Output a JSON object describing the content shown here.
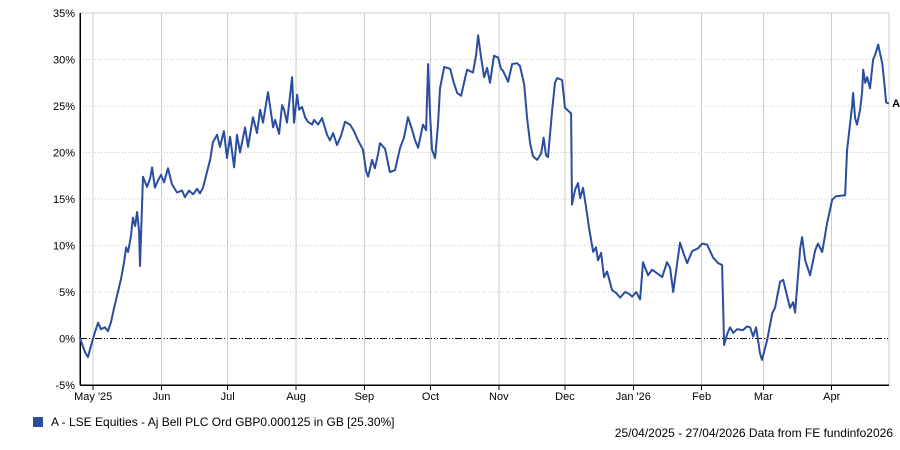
{
  "chart_data": {
    "type": "line",
    "title": "",
    "x_axis": {
      "unit": "date",
      "start_label": "25/04/2025",
      "end_label": "27/04/2026",
      "total_days": 367,
      "ticks": [
        {
          "label": "May '25",
          "day": 6
        },
        {
          "label": "Jun",
          "day": 37
        },
        {
          "label": "Jul",
          "day": 67
        },
        {
          "label": "Aug",
          "day": 98
        },
        {
          "label": "Sep",
          "day": 129
        },
        {
          "label": "Oct",
          "day": 159
        },
        {
          "label": "Nov",
          "day": 190
        },
        {
          "label": "Dec",
          "day": 220
        },
        {
          "label": "Jan '26",
          "day": 251
        },
        {
          "label": "Feb",
          "day": 282
        },
        {
          "label": "Mar",
          "day": 310
        },
        {
          "label": "Apr",
          "day": 341
        }
      ]
    },
    "y_axis": {
      "unit": "%",
      "min": -5,
      "max": 35,
      "tick_step": 5,
      "zero_line": true
    },
    "grid": {
      "vertical_color": "#cccccc",
      "horizontal_color": "#c9c9c9",
      "zero_line_color": "#000000",
      "axis_color": "#000000"
    },
    "series": [
      {
        "name": "A - LSE Equities - Aj Bell PLC Ord GBP0.000125 in GB [25.30%]",
        "short_label": "A",
        "final_value_pct": 25.3,
        "color": "#2a4da0",
        "points": [
          [
            0,
            0
          ],
          [
            2.3,
            -1.5
          ],
          [
            3.6,
            -2
          ],
          [
            5,
            -0.8
          ],
          [
            6.8,
            0.7
          ],
          [
            8.2,
            1.7
          ],
          [
            9.5,
            1
          ],
          [
            11.3,
            1.2
          ],
          [
            12.7,
            0.8
          ],
          [
            14.1,
            1.8
          ],
          [
            15.4,
            3.2
          ],
          [
            17.2,
            5
          ],
          [
            18.6,
            6.4
          ],
          [
            20,
            8.2
          ],
          [
            20.9,
            9.8
          ],
          [
            21.8,
            9.3
          ],
          [
            23.1,
            11
          ],
          [
            24,
            13
          ],
          [
            25,
            12.1
          ],
          [
            25.9,
            13.6
          ],
          [
            26.8,
            11.5
          ],
          [
            27.2,
            7.8
          ],
          [
            28.6,
            17.4
          ],
          [
            30.4,
            16.3
          ],
          [
            31.8,
            17.2
          ],
          [
            32.7,
            18.4
          ],
          [
            34,
            16.2
          ],
          [
            35.4,
            17
          ],
          [
            36.8,
            17.6
          ],
          [
            38.1,
            16.8
          ],
          [
            39.9,
            18.3
          ],
          [
            41.7,
            16.6
          ],
          [
            44,
            15.7
          ],
          [
            46.3,
            15.9
          ],
          [
            47.6,
            15.2
          ],
          [
            49.5,
            15.9
          ],
          [
            51.3,
            15.5
          ],
          [
            53.1,
            16.1
          ],
          [
            54.4,
            15.6
          ],
          [
            55.8,
            16.2
          ],
          [
            57.6,
            17.9
          ],
          [
            59,
            19.2
          ],
          [
            60.3,
            21.1
          ],
          [
            62.2,
            21.9
          ],
          [
            63.5,
            20.6
          ],
          [
            65.3,
            22.3
          ],
          [
            66.7,
            19.4
          ],
          [
            68.1,
            21.7
          ],
          [
            69.9,
            18.4
          ],
          [
            71.2,
            21.9
          ],
          [
            72.6,
            20
          ],
          [
            74.9,
            22.7
          ],
          [
            76.2,
            20.6
          ],
          [
            78.5,
            23.8
          ],
          [
            80.3,
            22.1
          ],
          [
            81.7,
            24.6
          ],
          [
            83,
            23.2
          ],
          [
            85.3,
            26.5
          ],
          [
            86.7,
            24.2
          ],
          [
            87.6,
            22.7
          ],
          [
            88.5,
            23.5
          ],
          [
            90.3,
            22
          ],
          [
            91.7,
            25.1
          ],
          [
            92.6,
            24.6
          ],
          [
            93.9,
            23.2
          ],
          [
            96.2,
            28.1
          ],
          [
            97.1,
            23.2
          ],
          [
            98.5,
            26.2
          ],
          [
            99.4,
            24.6
          ],
          [
            100.7,
            24.9
          ],
          [
            102.1,
            23.8
          ],
          [
            103.4,
            23.3
          ],
          [
            105.3,
            23
          ],
          [
            106.2,
            23.5
          ],
          [
            108,
            23
          ],
          [
            109.8,
            23.7
          ],
          [
            112.1,
            21.9
          ],
          [
            113.4,
            21.3
          ],
          [
            114.8,
            22.1
          ],
          [
            116.6,
            20.8
          ],
          [
            118.4,
            21.8
          ],
          [
            120.2,
            23.3
          ],
          [
            122.5,
            23
          ],
          [
            124.3,
            22.3
          ],
          [
            126.1,
            21.3
          ],
          [
            128.4,
            20.3
          ],
          [
            129.8,
            18
          ],
          [
            130.7,
            17.4
          ],
          [
            132.5,
            19.2
          ],
          [
            133.8,
            18.3
          ],
          [
            135.2,
            19.8
          ],
          [
            136.1,
            21
          ],
          [
            138.4,
            20.4
          ],
          [
            139.7,
            18.9
          ],
          [
            140.6,
            17.9
          ],
          [
            142.9,
            18.1
          ],
          [
            145.2,
            20.5
          ],
          [
            147,
            21.6
          ],
          [
            148.8,
            23.8
          ],
          [
            150.6,
            22.5
          ],
          [
            152,
            21.3
          ],
          [
            153.4,
            20.5
          ],
          [
            155.6,
            23
          ],
          [
            157,
            22.4
          ],
          [
            157.9,
            29.5
          ],
          [
            158.8,
            24
          ],
          [
            159.7,
            20.3
          ],
          [
            161.1,
            19.4
          ],
          [
            162.4,
            23
          ],
          [
            163.3,
            26.9
          ],
          [
            165.2,
            29.2
          ],
          [
            167.9,
            29
          ],
          [
            169.7,
            27.4
          ],
          [
            171.1,
            26.4
          ],
          [
            172.9,
            26.1
          ],
          [
            174.7,
            28
          ],
          [
            175.6,
            28.9
          ],
          [
            178.3,
            28.6
          ],
          [
            179.7,
            30.5
          ],
          [
            180.6,
            32.6
          ],
          [
            181.9,
            30.3
          ],
          [
            183.3,
            28.1
          ],
          [
            184.7,
            29.1
          ],
          [
            186,
            27.5
          ],
          [
            187.8,
            30.4
          ],
          [
            189.7,
            30.2
          ],
          [
            191,
            29
          ],
          [
            191.9,
            28.8
          ],
          [
            194.2,
            27.6
          ],
          [
            196,
            29.5
          ],
          [
            198.3,
            29.6
          ],
          [
            199.6,
            29.3
          ],
          [
            201.5,
            27.3
          ],
          [
            202.8,
            23.8
          ],
          [
            204.2,
            21
          ],
          [
            205.5,
            19.6
          ],
          [
            207.4,
            19.2
          ],
          [
            209.2,
            19.9
          ],
          [
            210.3,
            21.6
          ],
          [
            211.4,
            19.7
          ],
          [
            212.3,
            19.5
          ],
          [
            214.2,
            24.6
          ],
          [
            215.5,
            27.5
          ],
          [
            216.4,
            28
          ],
          [
            218.7,
            27.8
          ],
          [
            220,
            24.8
          ],
          [
            222.8,
            24.2
          ],
          [
            223.2,
            14.4
          ],
          [
            224.6,
            16
          ],
          [
            225.9,
            16.7
          ],
          [
            226.9,
            15.1
          ],
          [
            228.2,
            16.2
          ],
          [
            229.6,
            14.1
          ],
          [
            230.9,
            11.9
          ],
          [
            232.8,
            9.3
          ],
          [
            234.1,
            9.8
          ],
          [
            235,
            8.4
          ],
          [
            236.4,
            9.2
          ],
          [
            237.7,
            6.6
          ],
          [
            239.1,
            7.2
          ],
          [
            241.4,
            5.2
          ],
          [
            243.2,
            4.9
          ],
          [
            245,
            4.4
          ],
          [
            247.3,
            5
          ],
          [
            249.1,
            4.8
          ],
          [
            250.5,
            4.5
          ],
          [
            252.3,
            5
          ],
          [
            254.1,
            4.2
          ],
          [
            255.4,
            8.2
          ],
          [
            257.7,
            6.8
          ],
          [
            259.5,
            7.4
          ],
          [
            261.3,
            7.1
          ],
          [
            264.1,
            6.6
          ],
          [
            266.3,
            8.2
          ],
          [
            267.7,
            7.6
          ],
          [
            269.1,
            5
          ],
          [
            272.2,
            10.3
          ],
          [
            273.6,
            9.3
          ],
          [
            275.4,
            8.1
          ],
          [
            277.7,
            9.4
          ],
          [
            280.4,
            9.7
          ],
          [
            282.2,
            10.2
          ],
          [
            284.5,
            10.1
          ],
          [
            287.2,
            8.7
          ],
          [
            289.5,
            8.1
          ],
          [
            291.3,
            7.9
          ],
          [
            292.2,
            -0.7
          ],
          [
            293.6,
            0.5
          ],
          [
            294.9,
            1.2
          ],
          [
            296.3,
            0.6
          ],
          [
            298.1,
            1
          ],
          [
            300.8,
            0.9
          ],
          [
            302.6,
            1.3
          ],
          [
            304,
            1.2
          ],
          [
            305.4,
            0.2
          ],
          [
            306.7,
            1.2
          ],
          [
            308.5,
            -1.6
          ],
          [
            309.4,
            -2.3
          ],
          [
            311.7,
            -0.2
          ],
          [
            314,
            2.7
          ],
          [
            315.3,
            3.3
          ],
          [
            317.6,
            6.1
          ],
          [
            319,
            6.3
          ],
          [
            320.8,
            4.5
          ],
          [
            322.1,
            3.3
          ],
          [
            323.5,
            3.9
          ],
          [
            324.4,
            2.8
          ],
          [
            326.7,
            9.7
          ],
          [
            327.6,
            10.9
          ],
          [
            329,
            8.4
          ],
          [
            331.2,
            6.8
          ],
          [
            333.5,
            9.5
          ],
          [
            334.8,
            10.2
          ],
          [
            336.7,
            9.3
          ],
          [
            338.9,
            12.4
          ],
          [
            341.2,
            14.9
          ],
          [
            343,
            15.3
          ],
          [
            347.1,
            15.4
          ],
          [
            348,
            20.3
          ],
          [
            349.4,
            23.2
          ],
          [
            350.2,
            24.9
          ],
          [
            350.7,
            26.4
          ],
          [
            351.6,
            23.7
          ],
          [
            352.5,
            23
          ],
          [
            353.9,
            24.6
          ],
          [
            354.8,
            26.5
          ],
          [
            355.3,
            28.9
          ],
          [
            356.2,
            27.5
          ],
          [
            357.1,
            28.1
          ],
          [
            358.4,
            26.9
          ],
          [
            359.8,
            30
          ],
          [
            360.7,
            30.5
          ],
          [
            362.1,
            31.6
          ],
          [
            363.9,
            29.6
          ],
          [
            364.8,
            27.6
          ],
          [
            365.7,
            25.4
          ],
          [
            366.6,
            25.3
          ]
        ]
      }
    ]
  },
  "legend": {
    "marker_color": "#2a4da0",
    "label": "A - LSE Equities - Aj Bell PLC Ord GBP0.000125 in GB [25.30%]"
  },
  "footer": {
    "text": "25/04/2025 - 27/04/2026 Data from FE fundinfo2026"
  }
}
